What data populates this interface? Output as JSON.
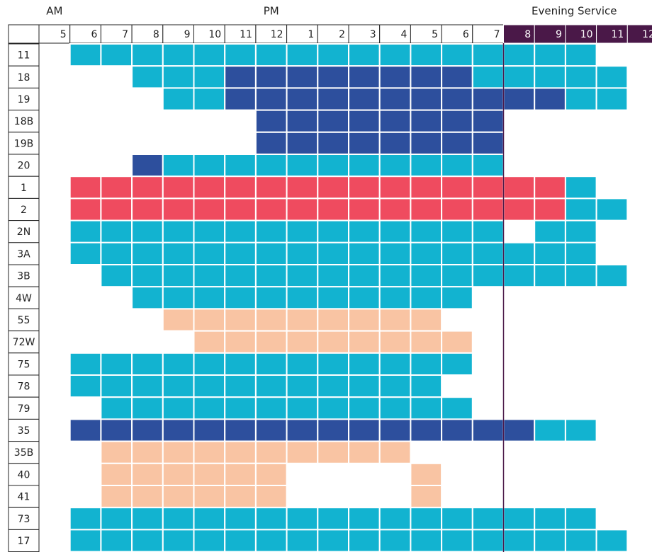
{
  "groups": [
    {
      "label": "AM",
      "start": 0
    },
    {
      "label": "PM",
      "start": 7
    },
    {
      "label": "Evening Service",
      "start": 15
    }
  ],
  "hours": [
    "5",
    "6",
    "7",
    "8",
    "9",
    "10",
    "11",
    "12",
    "1",
    "2",
    "3",
    "4",
    "5",
    "6",
    "7",
    "8",
    "9",
    "10",
    "11",
    "12"
  ],
  "colors": {
    "c": "#12b3d0",
    "d": "#2d4f9d",
    "r": "#ef4b5f",
    "p": "#f9c4a3"
  },
  "routes": [
    {
      "name": "11",
      "cells": ".ccccccccccccccccc.."
    },
    {
      "name": "18",
      "cells": "...cccddddddddccccc."
    },
    {
      "name": "19",
      "cells": "....ccdddddddddddcc."
    },
    {
      "name": "18B",
      "cells": ".......dddddddd....."
    },
    {
      "name": "19B",
      "cells": ".......dddddddd....."
    },
    {
      "name": "20",
      "cells": "...dccccccccccc....."
    },
    {
      "name": "1",
      "cells": ".rrrrrrrrrrrrrrrrc.."
    },
    {
      "name": "2",
      "cells": ".rrrrrrrrrrrrrrrrcc."
    },
    {
      "name": "2N",
      "cells": ".cccccccccccccc.cc.."
    },
    {
      "name": "3A",
      "cells": ".ccccccccccccccccc.."
    },
    {
      "name": "3B",
      "cells": "..ccccccccccccccccc."
    },
    {
      "name": "4W",
      "cells": "...ccccccccccc......"
    },
    {
      "name": "55",
      "cells": "....ppppppppp......."
    },
    {
      "name": "72W",
      "cells": ".....ppppppppp......"
    },
    {
      "name": "75",
      "cells": ".ccccccccccccc......"
    },
    {
      "name": "78",
      "cells": ".cccccccccccc......."
    },
    {
      "name": "79",
      "cells": "..cccccccccccc......"
    },
    {
      "name": "35",
      "cells": ".dddddddddddddddcc.."
    },
    {
      "name": "35B",
      "cells": "..pppppppppp........"
    },
    {
      "name": "40",
      "cells": "..pppppp....p......."
    },
    {
      "name": "41",
      "cells": "..pppppp....p......."
    },
    {
      "name": "73",
      "cells": ".ccccccccccccccccc.."
    },
    {
      "name": "17",
      "cells": ".cccccccccccccccccc."
    }
  ]
}
